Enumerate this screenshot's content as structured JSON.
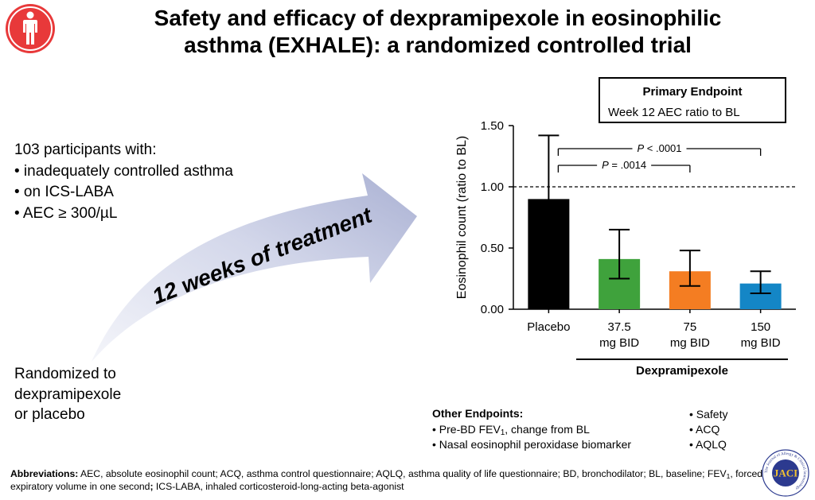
{
  "title": {
    "line1": "Safety and efficacy of dexpramipexole in eosinophilic",
    "line2": "asthma (EXHALE): a randomized controlled trial"
  },
  "participants": {
    "heading": "103 participants with:",
    "items": [
      "• inadequately controlled asthma",
      "• on ICS-LABA",
      "• AEC ≥ 300/µL"
    ]
  },
  "arrow_label": "12 weeks of treatment",
  "randomized": {
    "lines": [
      "Randomized to",
      "dexpramipexole",
      "or placebo"
    ]
  },
  "primary_endpoint": {
    "title": "Primary Endpoint",
    "text": "Week 12 AEC ratio to BL"
  },
  "chart_data": {
    "type": "bar",
    "ylabel": "Eosinophil count (ratio to BL)",
    "ylim": [
      0,
      1.5
    ],
    "yticks": [
      0,
      0.5,
      1.0,
      1.5
    ],
    "ytick_labels": [
      "0.00",
      "0.50",
      "1.00",
      "1.50"
    ],
    "reference_line": 1.0,
    "categories": [
      {
        "lines": [
          "Placebo"
        ],
        "value": 0.9,
        "err_low": 0.57,
        "err_high": 1.42,
        "color": "#000000"
      },
      {
        "lines": [
          "37.5",
          "mg BID"
        ],
        "value": 0.41,
        "err_low": 0.25,
        "err_high": 0.65,
        "color": "#3fa23c"
      },
      {
        "lines": [
          "75",
          "mg BID"
        ],
        "value": 0.31,
        "err_low": 0.19,
        "err_high": 0.48,
        "color": "#f47d22"
      },
      {
        "lines": [
          "150",
          "mg BID"
        ],
        "value": 0.21,
        "err_low": 0.13,
        "err_high": 0.31,
        "color": "#1486c6"
      }
    ],
    "group_label": "Dexpramipexole",
    "comparisons": [
      {
        "from": 0,
        "to": 3,
        "label_p": "P",
        "label_rest": " < .0001"
      },
      {
        "from": 0,
        "to": 2,
        "label_p": "P",
        "label_rest": " = .0014"
      }
    ]
  },
  "other_endpoints": {
    "title": "Other Endpoints:",
    "item1_prefix": "• Pre-BD FEV",
    "item1_sub": "1",
    "item1_suffix": ", change from BL",
    "item2": "• Nasal eosinophil peroxidase biomarker",
    "right": [
      "• Safety",
      "• ACQ",
      "• AQLQ"
    ]
  },
  "abbreviations": {
    "label": "Abbreviations:",
    "text1": " AEC, absolute eosinophil count; ACQ, asthma control questionnaire; AQLQ, asthma quality of life questionnaire; BD, bronchodilator; BL, baseline; FEV",
    "sub": "1",
    "text2": ", forced expiratory volume in one second",
    "semi": ";",
    "text3": " ICS-LABA, inhaled corticosteroid-long-acting beta-agonist"
  },
  "logo": {
    "text": "JACI",
    "ring_text": "The Journal of Allergy & Clinical Immunology"
  },
  "colors": {
    "icon_red": "#e8393a",
    "arrow_light": "#eef0f7",
    "arrow_dark": "#b7bdd9"
  }
}
